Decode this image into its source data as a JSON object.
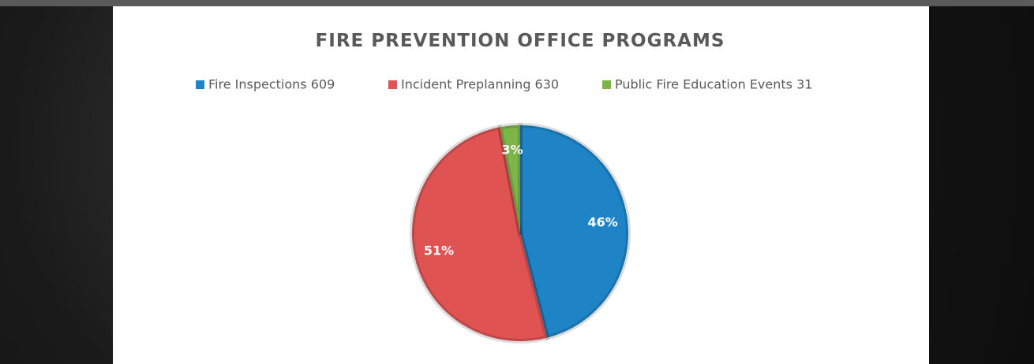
{
  "chart_data": {
    "type": "pie",
    "title": "FIRE PREVENTION OFFICE PROGRAMS",
    "categories": [
      "Fire Inspections 609",
      "Incident Preplanning 630",
      "Public Fire Education Events 31"
    ],
    "values": [
      46,
      51,
      3
    ],
    "value_labels": [
      "46%",
      "51%",
      "3%"
    ],
    "colors": [
      "#1f84c5",
      "#e05353",
      "#7cb548"
    ],
    "legend": "top"
  }
}
